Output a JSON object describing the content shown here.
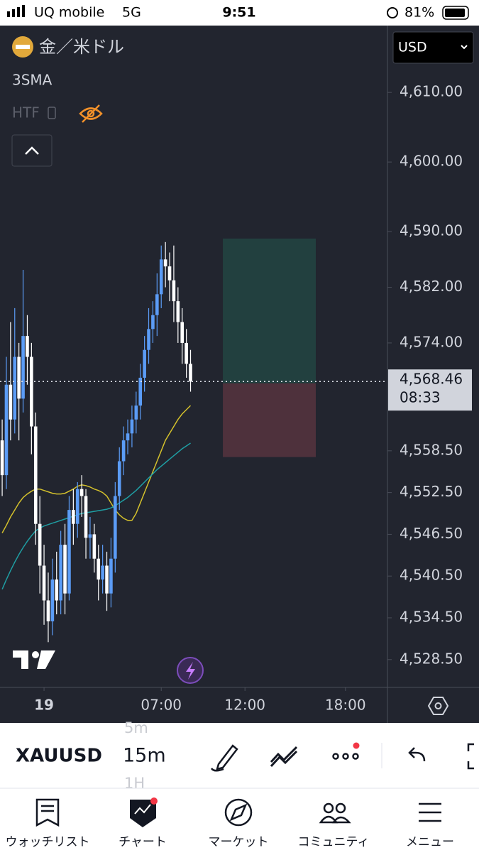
{
  "status_bar": {
    "carrier": "UQ mobile",
    "network": "5G",
    "time": "9:51",
    "battery": "81%"
  },
  "header": {
    "symbol_name": "金／米ドル",
    "indicator": "3SMA",
    "htf": "HTF",
    "currency": "USD"
  },
  "chart_data": {
    "type": "candlestick",
    "x": [
      -2.5,
      -2.25,
      -2,
      -1.75,
      -1.5,
      -1.25,
      -1,
      -0.75,
      -0.5,
      -0.25,
      0,
      0.25,
      0.5,
      0.75,
      1,
      1.25,
      1.5,
      1.75,
      2,
      2.25,
      2.5,
      2.75,
      3,
      3.25,
      3.5,
      3.75,
      4,
      4.25,
      4.5,
      4.75,
      5,
      5.25,
      5.5,
      5.75,
      6,
      6.25,
      6.5,
      6.75,
      7,
      7.25,
      7.5,
      7.75,
      8,
      8.25,
      8.5,
      8.75
    ],
    "open": [
      4560,
      4555,
      4568,
      4563,
      4572,
      4566,
      4575,
      4572,
      4562,
      4548,
      4542,
      4537,
      4534,
      4540,
      4537,
      4545,
      4538,
      4550,
      4548,
      4553,
      4552,
      4546,
      4546.5,
      4543,
      4540,
      4542,
      4538,
      4543,
      4552,
      4557,
      4560,
      4561,
      4563,
      4565,
      4569,
      4573,
      4576,
      4578,
      4581,
      4586,
      4585,
      4583,
      4580,
      4577,
      4574,
      4571
    ],
    "high": [
      4563,
      4572,
      4577,
      4579,
      4574,
      4584.5,
      4578,
      4574,
      4564,
      4552,
      4545,
      4541,
      4543,
      4544,
      4547,
      4548,
      4552,
      4553,
      4554,
      4555,
      4553,
      4549,
      4548,
      4545,
      4545,
      4544,
      4546,
      4554,
      4559,
      4562,
      4563,
      4565,
      4567,
      4571,
      4575,
      4579,
      4580,
      4584,
      4588,
      4588.5,
      4587,
      4588,
      4582,
      4579,
      4576,
      4573
    ],
    "low": [
      4552,
      4553,
      4560,
      4561,
      4560,
      4564,
      4568,
      4558,
      4545,
      4538,
      4533.5,
      4531,
      4532,
      4535,
      4535,
      4535,
      4537,
      4545,
      4546,
      4549,
      4543,
      4543,
      4541,
      4537,
      4538,
      4535.5,
      4536,
      4541,
      4550,
      4555,
      4558,
      4559,
      4561,
      4563,
      4567,
      4571,
      4574,
      4575,
      4579,
      4582,
      4580,
      4577,
      4574,
      4571,
      4569,
      4567
    ],
    "close": [
      4555,
      4568,
      4563,
      4572,
      4566,
      4575,
      4572,
      4562,
      4548,
      4542,
      4537,
      4534,
      4540,
      4537,
      4545,
      4538,
      4550,
      4548,
      4553,
      4552,
      4546,
      4546.5,
      4543,
      4540,
      4542,
      4538,
      4543,
      4552,
      4557,
      4560,
      4561,
      4563,
      4565,
      4569,
      4573,
      4576,
      4578,
      4581,
      4586,
      4585,
      4583,
      4580,
      4577,
      4574,
      4571,
      4568.46
    ],
    "up_color": "#5b9cf6",
    "down_color": "#ffffff",
    "moving_averages": [
      {
        "color": "#d4c12c",
        "values": [
          4546.7,
          4547.8,
          4549,
          4550,
          4551,
          4551.8,
          4552.3,
          4552.7,
          4553,
          4553,
          4552.8,
          4552.6,
          4552.4,
          4552.3,
          4552.3,
          4552.4,
          4552.7,
          4553,
          4553.4,
          4553.6,
          4553.5,
          4553.3,
          4553,
          4552.8,
          4552.5,
          4552,
          4551,
          4550,
          4549.3,
          4548.8,
          4548.5,
          4548.5,
          4549.5,
          4551,
          4552.5,
          4554,
          4555.5,
          4557,
          4558.5,
          4560,
          4561,
          4562,
          4563,
          4563.8,
          4564.4,
          4565
        ]
      },
      {
        "color": "#1f9ea3",
        "values": [
          4538.6,
          4540,
          4541.3,
          4542.5,
          4543.6,
          4544.6,
          4545.5,
          4546.3,
          4547,
          4547.4,
          4547.7,
          4547.9,
          4548.1,
          4548.3,
          4548.5,
          4548.7,
          4548.9,
          4549.1,
          4549.3,
          4549.5,
          4549.6,
          4549.7,
          4549.8,
          4549.9,
          4550,
          4550.1,
          4550.3,
          4550.6,
          4551,
          4551.4,
          4551.8,
          4552.3,
          4552.8,
          4553.4,
          4554,
          4554.6,
          4555.2,
          4555.8,
          4556.3,
          4556.8,
          4557.3,
          4557.8,
          4558.3,
          4558.8,
          4559.2,
          4559.6
        ]
      }
    ],
    "position": {
      "start": 10.68,
      "end": 16.23,
      "target": 4589,
      "entry": 4568.2,
      "stop": 4557.6,
      "target_color": "#22403f",
      "stop_color": "#4e313c"
    },
    "last_price": {
      "value": 4568.46,
      "label": "4,568.46"
    },
    "countdown": "08:33",
    "ylim": [
      4524.5,
      4619.2
    ],
    "yticks": [
      {
        "value": 4610,
        "label": "4,610.00"
      },
      {
        "value": 4600,
        "label": "4,600.00"
      },
      {
        "value": 4590,
        "label": "4,590.00"
      },
      {
        "value": 4582,
        "label": "4,582.00"
      },
      {
        "value": 4574,
        "label": "4,574.00"
      },
      {
        "value": 4558.5,
        "label": "4,558.50"
      },
      {
        "value": 4552.5,
        "label": "4,552.50"
      },
      {
        "value": 4546.5,
        "label": "4,546.50"
      },
      {
        "value": 4540.5,
        "label": "4,540.50"
      },
      {
        "value": 4534.5,
        "label": "4,534.50"
      },
      {
        "value": 4528.5,
        "label": "4,528.50"
      }
    ],
    "xlim": [
      -2.63,
      20.51
    ],
    "xticks": [
      {
        "value": 0,
        "label": "19"
      },
      {
        "value": 7,
        "label": "07:00"
      },
      {
        "value": 12,
        "label": "12:00"
      },
      {
        "value": 18,
        "label": "18:00"
      }
    ]
  },
  "toolbar": {
    "symbol": "XAUUSD",
    "interval": "15m",
    "interval_prev": "5m",
    "interval_next": "1H"
  },
  "tab_bar": {
    "items": [
      "ウォッチリスト",
      "チャート",
      "マーケット",
      "コミュニティ",
      "メニュー"
    ]
  }
}
